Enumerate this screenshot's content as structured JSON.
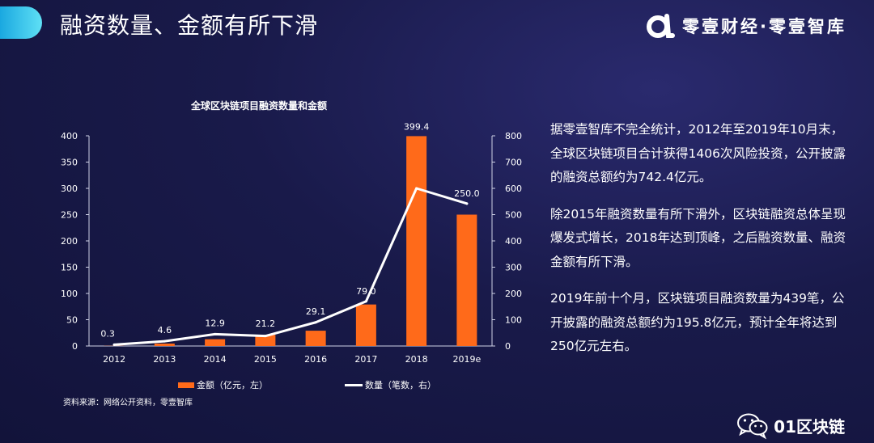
{
  "header": {
    "title": "融资数量、金额有所下滑",
    "brand": "零壹财经·零壹智库"
  },
  "chart_data": {
    "type": "bar",
    "title": "全球区块链项目融资数量和金额",
    "categories": [
      "2012",
      "2013",
      "2014",
      "2015",
      "2016",
      "2017",
      "2018",
      "2019e"
    ],
    "series": [
      {
        "name": "金额（亿元，左）",
        "kind": "bar",
        "axis": "left",
        "color": "#ff6a1a",
        "values": [
          0.3,
          4.6,
          12.9,
          21.2,
          29.1,
          79.0,
          399.4,
          250.0
        ],
        "labels": [
          "0.3",
          "4.6",
          "12.9",
          "21.2",
          "29.1",
          "79.0",
          "399.4",
          "250.0"
        ]
      },
      {
        "name": "数量（笔数，右）",
        "kind": "line",
        "axis": "right",
        "color": "#ffffff",
        "values": [
          5,
          18,
          45,
          38,
          90,
          170,
          600,
          542
        ]
      }
    ],
    "y_left": {
      "min": 0,
      "max": 400,
      "ticks": [
        0,
        50,
        100,
        150,
        200,
        250,
        300,
        350,
        400
      ]
    },
    "y_right": {
      "min": 0,
      "max": 800,
      "ticks": [
        0,
        100,
        200,
        300,
        400,
        500,
        600,
        700,
        800
      ]
    },
    "grid": false,
    "legend_position": "bottom"
  },
  "source": "资料来源：网络公开资料，零壹智库",
  "paragraphs": [
    "据零壹智库不完全统计，2012年至2019年10月末，全球区块链项目合计获得1406次风险投资，公开披露的融资总额约为742.4亿元。",
    "除2015年融资数量有所下滑外，区块链融资总体呈现爆发式增长，2018年达到顶峰，之后融资数量、融资金额有所下滑。",
    "2019年前十个月，区块链项目融资数量为439笔，公开披露的融资总额约为195.8亿元，预计全年将达到250亿元左右。"
  ],
  "footer": {
    "text": "01区块链"
  }
}
